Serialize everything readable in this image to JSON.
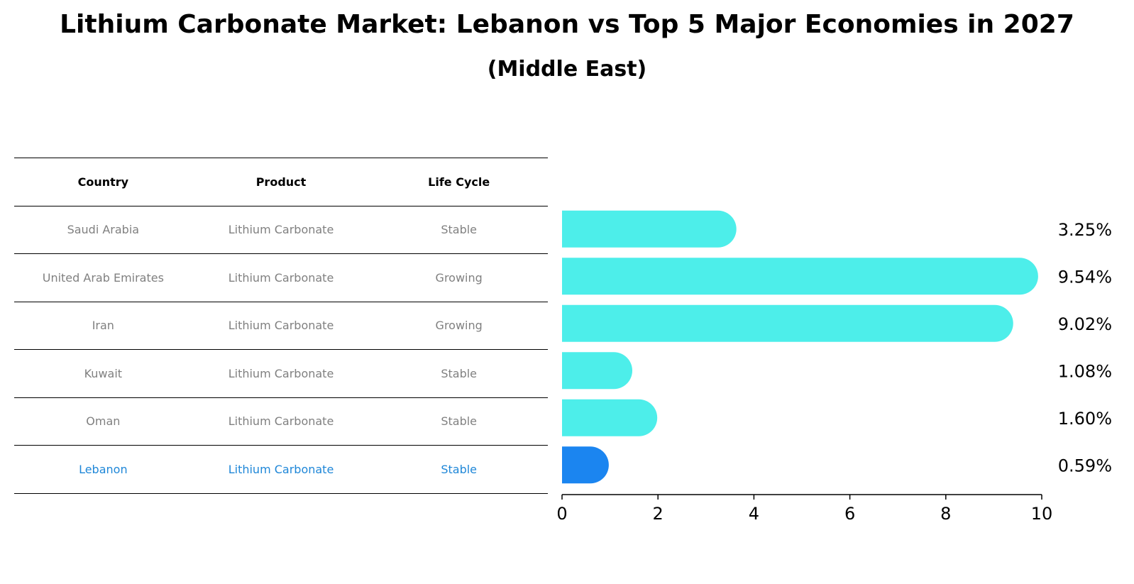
{
  "chart_data": {
    "type": "bar",
    "orientation": "horizontal",
    "title": "Lithium Carbonate Market: Lebanon vs Top 5 Major Economies in 2027",
    "subtitle": "(Middle East)",
    "table": {
      "columns": [
        "Country",
        "Product",
        "Life Cycle"
      ],
      "rows": [
        [
          "Saudi Arabia",
          "Lithium Carbonate",
          "Stable"
        ],
        [
          "United Arab Emirates",
          "Lithium Carbonate",
          "Growing"
        ],
        [
          "Iran",
          "Lithium Carbonate",
          "Growing"
        ],
        [
          "Kuwait",
          "Lithium Carbonate",
          "Stable"
        ],
        [
          "Oman",
          "Lithium Carbonate",
          "Stable"
        ],
        [
          "Lebanon",
          "Lithium Carbonate",
          "Stable"
        ]
      ],
      "highlight_row": 5
    },
    "categories": [
      "Saudi Arabia",
      "United Arab Emirates",
      "Iran",
      "Kuwait",
      "Oman",
      "Lebanon"
    ],
    "values": [
      3.25,
      9.54,
      9.02,
      1.08,
      1.6,
      0.59
    ],
    "value_labels": [
      "3.25%",
      "9.54%",
      "9.02%",
      "1.08%",
      "1.60%",
      "0.59%"
    ],
    "xlim": [
      0,
      10
    ],
    "xticks": [
      "0",
      "2",
      "4",
      "6",
      "8",
      "10"
    ],
    "colors": {
      "bar": "#4deeea",
      "highlight": "#1b85f0"
    },
    "grid": false
  }
}
